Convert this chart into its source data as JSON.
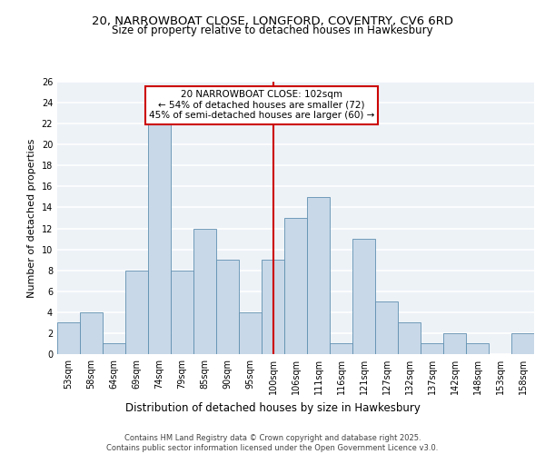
{
  "title1": "20, NARROWBOAT CLOSE, LONGFORD, COVENTRY, CV6 6RD",
  "title2": "Size of property relative to detached houses in Hawkesbury",
  "xlabel": "Distribution of detached houses by size in Hawkesbury",
  "ylabel": "Number of detached properties",
  "categories": [
    "53sqm",
    "58sqm",
    "64sqm",
    "69sqm",
    "74sqm",
    "79sqm",
    "85sqm",
    "90sqm",
    "95sqm",
    "100sqm",
    "106sqm",
    "111sqm",
    "116sqm",
    "121sqm",
    "127sqm",
    "132sqm",
    "137sqm",
    "142sqm",
    "148sqm",
    "153sqm",
    "158sqm"
  ],
  "values": [
    3,
    4,
    1,
    8,
    22,
    8,
    12,
    9,
    4,
    9,
    13,
    15,
    1,
    11,
    5,
    3,
    1,
    2,
    1,
    0,
    2
  ],
  "bar_color": "#c8d8e8",
  "bar_edge_color": "#6090b0",
  "highlight_index": 9,
  "highlight_line_color": "#cc0000",
  "annotation_text": "20 NARROWBOAT CLOSE: 102sqm\n← 54% of detached houses are smaller (72)\n45% of semi-detached houses are larger (60) →",
  "annotation_box_color": "#ffffff",
  "annotation_edge_color": "#cc0000",
  "ylim": [
    0,
    26
  ],
  "yticks": [
    0,
    2,
    4,
    6,
    8,
    10,
    12,
    14,
    16,
    18,
    20,
    22,
    24,
    26
  ],
  "bg_color": "#edf2f7",
  "grid_color": "#ffffff",
  "footer": "Contains HM Land Registry data © Crown copyright and database right 2025.\nContains public sector information licensed under the Open Government Licence v3.0.",
  "title1_fontsize": 9.5,
  "title2_fontsize": 8.5,
  "xlabel_fontsize": 8.5,
  "ylabel_fontsize": 8,
  "tick_fontsize": 7,
  "annotation_fontsize": 7.5,
  "footer_fontsize": 6
}
